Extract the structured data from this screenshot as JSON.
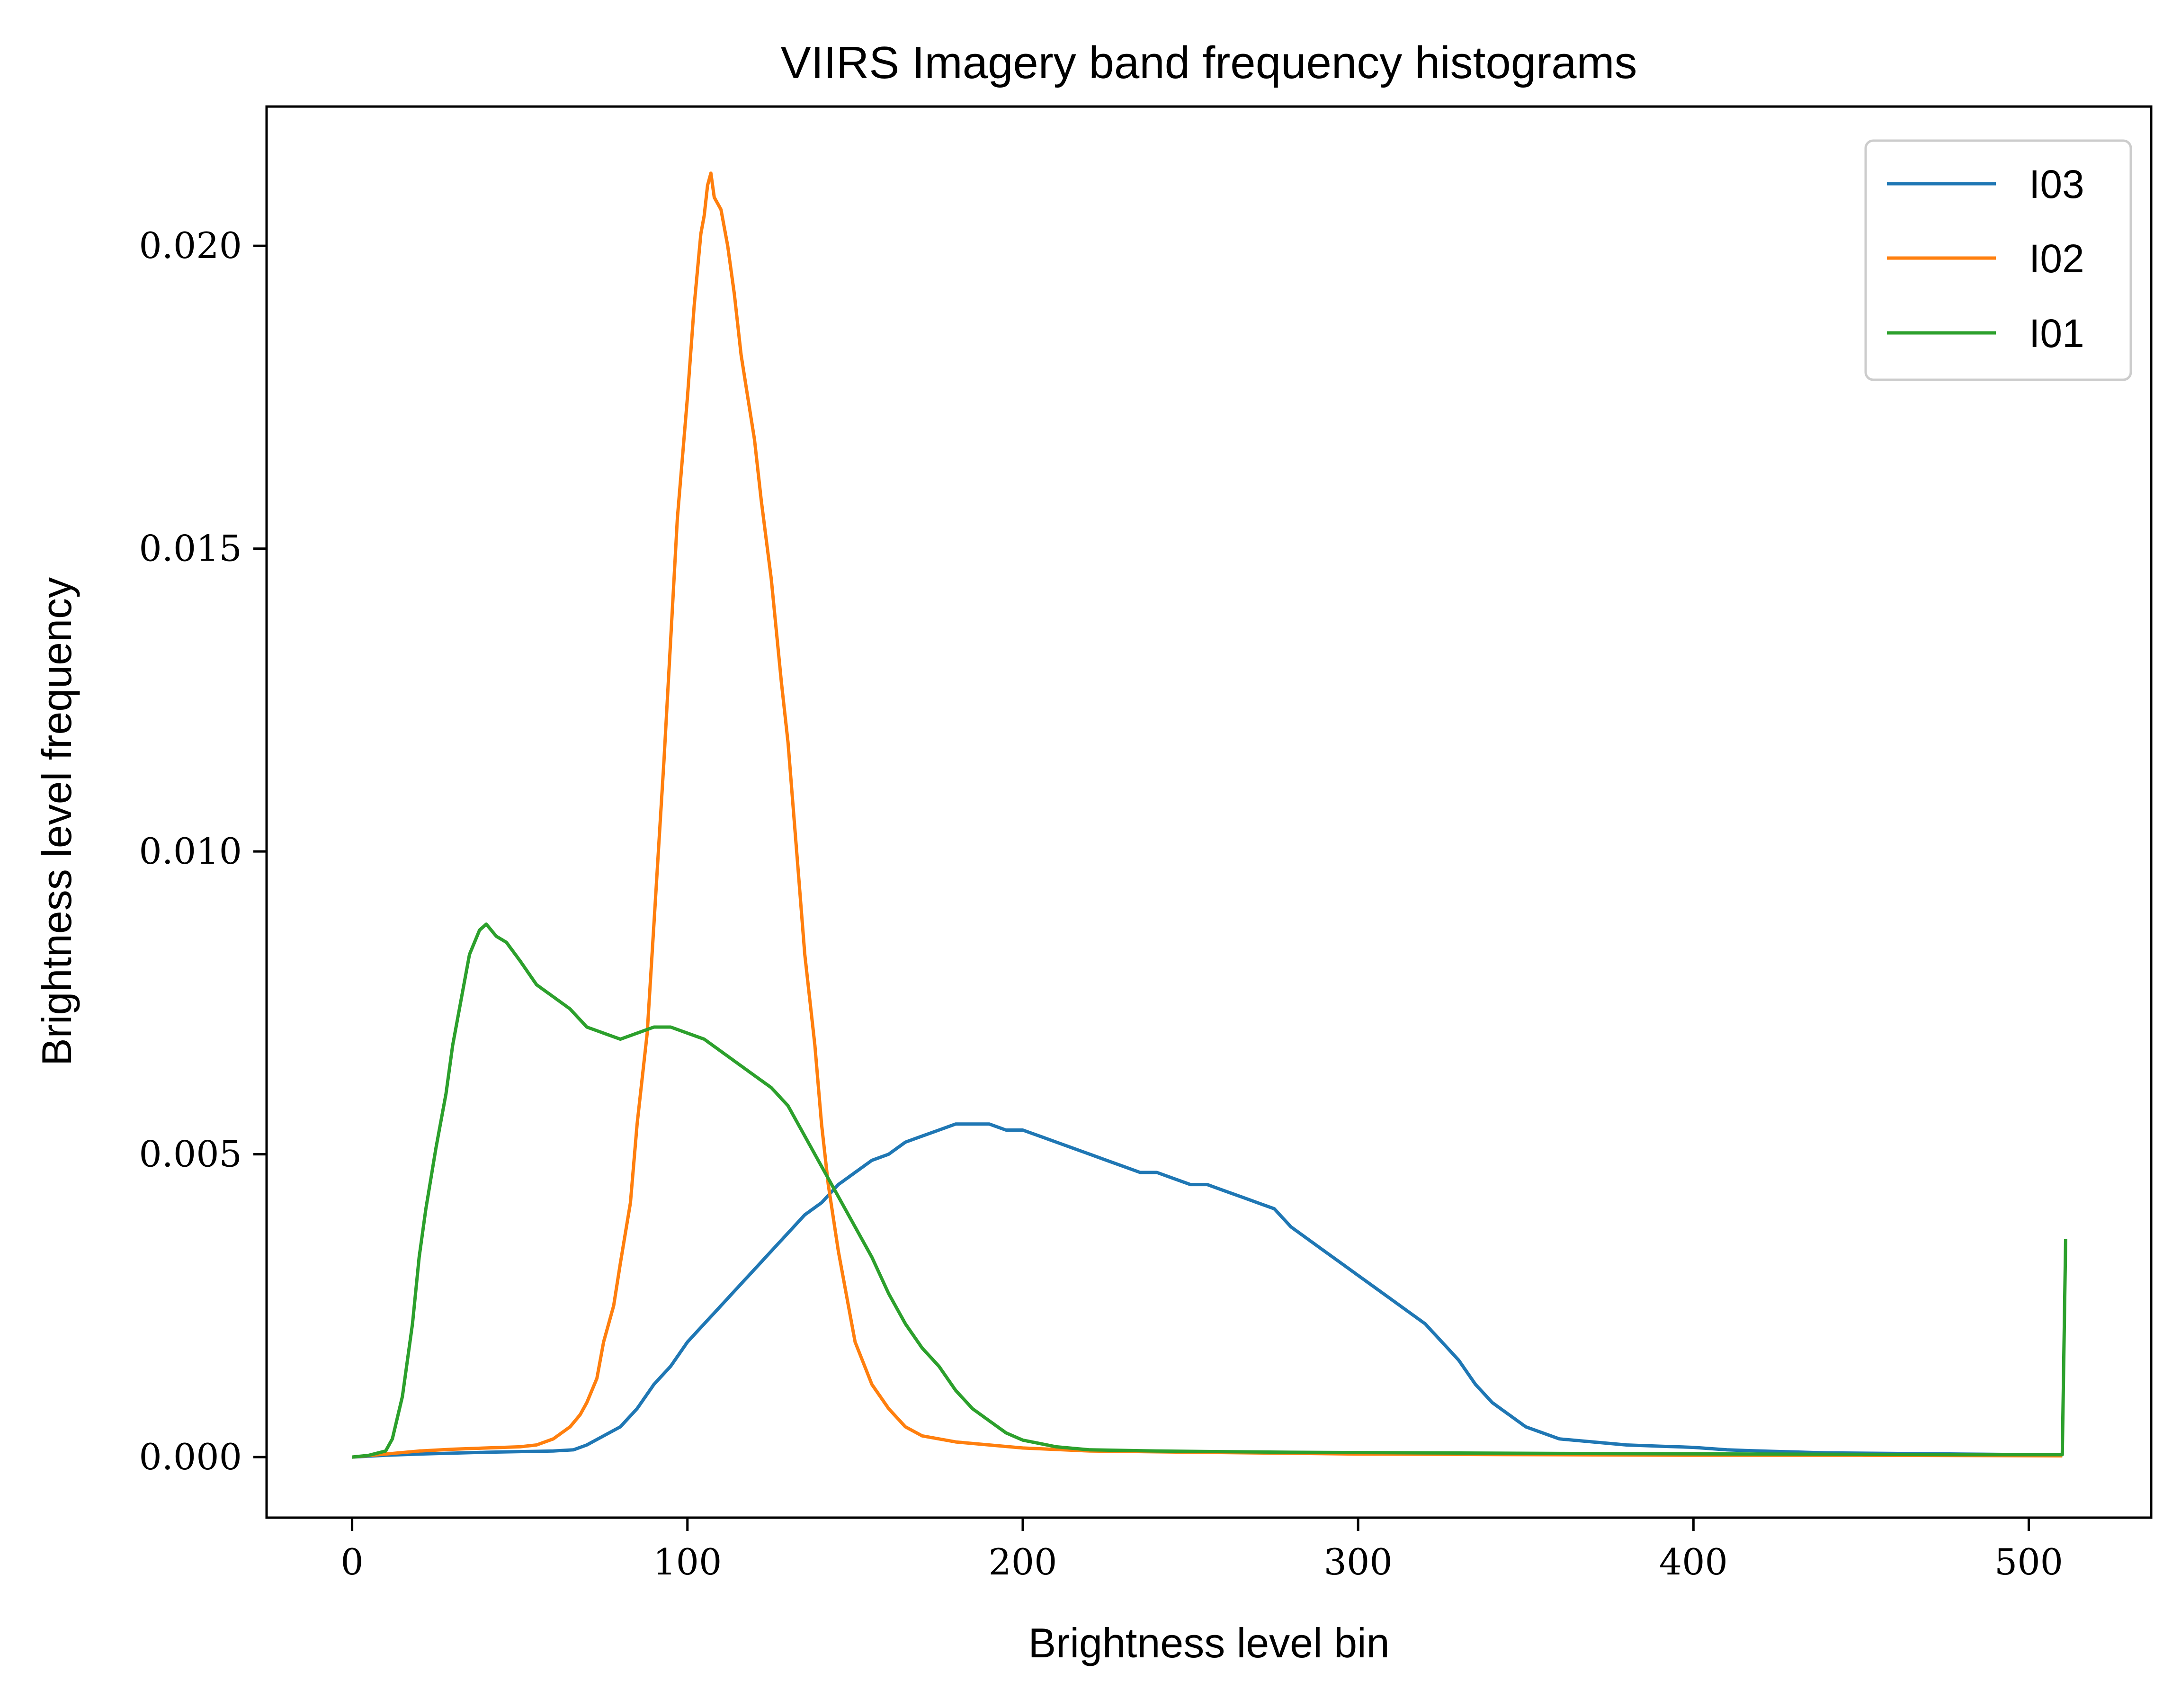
{
  "chart_data": {
    "type": "line",
    "title": "VIIRS Imagery band frequency histograms",
    "xlabel": "Brightness level bin",
    "ylabel": "Brightness level frequency",
    "xlim": [
      -25.5,
      536.5
    ],
    "ylim": [
      -0.001,
      0.0223
    ],
    "xticks": [
      0,
      100,
      200,
      300,
      400,
      500
    ],
    "xtick_labels": [
      "0",
      "100",
      "200",
      "300",
      "400",
      "500"
    ],
    "yticks": [
      0.0,
      0.005,
      0.01,
      0.015,
      0.02
    ],
    "ytick_labels": [
      "0.000",
      "0.005",
      "0.010",
      "0.015",
      "0.020"
    ],
    "legend_position": "top-right",
    "grid": false,
    "series": [
      {
        "name": "I03",
        "color": "#1f77b4",
        "points": [
          [
            0,
            0.0
          ],
          [
            10,
            3e-05
          ],
          [
            20,
            5e-05
          ],
          [
            40,
            8e-05
          ],
          [
            60,
            0.0001
          ],
          [
            66,
            0.00012
          ],
          [
            70,
            0.0002
          ],
          [
            75,
            0.00035
          ],
          [
            80,
            0.0005
          ],
          [
            85,
            0.0008
          ],
          [
            90,
            0.0012
          ],
          [
            95,
            0.0015
          ],
          [
            100,
            0.0019
          ],
          [
            105,
            0.0022
          ],
          [
            110,
            0.0025
          ],
          [
            115,
            0.0028
          ],
          [
            120,
            0.0031
          ],
          [
            125,
            0.0034
          ],
          [
            130,
            0.0037
          ],
          [
            135,
            0.004
          ],
          [
            140,
            0.0042
          ],
          [
            145,
            0.0045
          ],
          [
            150,
            0.0047
          ],
          [
            155,
            0.0049
          ],
          [
            160,
            0.005
          ],
          [
            165,
            0.0052
          ],
          [
            170,
            0.0053
          ],
          [
            175,
            0.0054
          ],
          [
            180,
            0.0055
          ],
          [
            185,
            0.0055
          ],
          [
            190,
            0.0055
          ],
          [
            195,
            0.0054
          ],
          [
            200,
            0.0054
          ],
          [
            205,
            0.0053
          ],
          [
            210,
            0.0052
          ],
          [
            215,
            0.0051
          ],
          [
            220,
            0.005
          ],
          [
            225,
            0.0049
          ],
          [
            230,
            0.0048
          ],
          [
            235,
            0.0047
          ],
          [
            240,
            0.0047
          ],
          [
            245,
            0.0046
          ],
          [
            250,
            0.0045
          ],
          [
            255,
            0.0045
          ],
          [
            260,
            0.0044
          ],
          [
            265,
            0.0043
          ],
          [
            270,
            0.0042
          ],
          [
            275,
            0.0041
          ],
          [
            280,
            0.0038
          ],
          [
            285,
            0.0036
          ],
          [
            290,
            0.0034
          ],
          [
            295,
            0.0032
          ],
          [
            300,
            0.003
          ],
          [
            305,
            0.0028
          ],
          [
            310,
            0.0026
          ],
          [
            315,
            0.0024
          ],
          [
            320,
            0.0022
          ],
          [
            325,
            0.0019
          ],
          [
            330,
            0.0016
          ],
          [
            335,
            0.0012
          ],
          [
            340,
            0.0009
          ],
          [
            345,
            0.0007
          ],
          [
            350,
            0.0005
          ],
          [
            355,
            0.0004
          ],
          [
            360,
            0.0003
          ],
          [
            370,
            0.00025
          ],
          [
            380,
            0.0002
          ],
          [
            390,
            0.00018
          ],
          [
            400,
            0.00016
          ],
          [
            410,
            0.00012
          ],
          [
            420,
            0.0001
          ],
          [
            440,
            7e-05
          ],
          [
            460,
            6e-05
          ],
          [
            480,
            5e-05
          ],
          [
            500,
            4e-05
          ],
          [
            510,
            4e-05
          ]
        ]
      },
      {
        "name": "I02",
        "color": "#ff7f0e",
        "points": [
          [
            0,
            0.0
          ],
          [
            10,
            5e-05
          ],
          [
            20,
            0.0001
          ],
          [
            30,
            0.00013
          ],
          [
            40,
            0.00015
          ],
          [
            50,
            0.00017
          ],
          [
            55,
            0.0002
          ],
          [
            60,
            0.0003
          ],
          [
            65,
            0.0005
          ],
          [
            68,
            0.0007
          ],
          [
            70,
            0.0009
          ],
          [
            73,
            0.0013
          ],
          [
            75,
            0.0019
          ],
          [
            78,
            0.0025
          ],
          [
            80,
            0.0032
          ],
          [
            83,
            0.0042
          ],
          [
            85,
            0.0055
          ],
          [
            88,
            0.007
          ],
          [
            90,
            0.0088
          ],
          [
            93,
            0.0115
          ],
          [
            95,
            0.0135
          ],
          [
            97,
            0.0155
          ],
          [
            100,
            0.0175
          ],
          [
            102,
            0.019
          ],
          [
            104,
            0.0202
          ],
          [
            105,
            0.0205
          ],
          [
            106,
            0.021
          ],
          [
            107,
            0.0212
          ],
          [
            108,
            0.0208
          ],
          [
            110,
            0.0206
          ],
          [
            112,
            0.02
          ],
          [
            114,
            0.0192
          ],
          [
            116,
            0.0182
          ],
          [
            118,
            0.0175
          ],
          [
            120,
            0.0168
          ],
          [
            122,
            0.0158
          ],
          [
            125,
            0.0145
          ],
          [
            128,
            0.0128
          ],
          [
            130,
            0.0118
          ],
          [
            133,
            0.0097
          ],
          [
            135,
            0.0083
          ],
          [
            138,
            0.0068
          ],
          [
            140,
            0.0055
          ],
          [
            142,
            0.0045
          ],
          [
            145,
            0.0034
          ],
          [
            148,
            0.0025
          ],
          [
            150,
            0.0019
          ],
          [
            155,
            0.0012
          ],
          [
            160,
            0.0008
          ],
          [
            165,
            0.0005
          ],
          [
            170,
            0.00035
          ],
          [
            180,
            0.00025
          ],
          [
            190,
            0.0002
          ],
          [
            200,
            0.00015
          ],
          [
            220,
            0.0001
          ],
          [
            250,
            8e-05
          ],
          [
            300,
            5e-05
          ],
          [
            350,
            4e-05
          ],
          [
            400,
            3e-05
          ],
          [
            450,
            3e-05
          ],
          [
            510,
            2e-05
          ]
        ]
      },
      {
        "name": "I01",
        "color": "#2ca02c",
        "points": [
          [
            0,
            0.0
          ],
          [
            5,
            3e-05
          ],
          [
            10,
            0.0001
          ],
          [
            12,
            0.0003
          ],
          [
            15,
            0.001
          ],
          [
            18,
            0.0022
          ],
          [
            20,
            0.0033
          ],
          [
            22,
            0.0041
          ],
          [
            25,
            0.0051
          ],
          [
            28,
            0.006
          ],
          [
            30,
            0.0068
          ],
          [
            33,
            0.0077
          ],
          [
            35,
            0.0083
          ],
          [
            38,
            0.0087
          ],
          [
            40,
            0.0088
          ],
          [
            43,
            0.0086
          ],
          [
            46,
            0.0085
          ],
          [
            50,
            0.0082
          ],
          [
            55,
            0.0078
          ],
          [
            60,
            0.0076
          ],
          [
            65,
            0.0074
          ],
          [
            70,
            0.0071
          ],
          [
            75,
            0.007
          ],
          [
            80,
            0.0069
          ],
          [
            85,
            0.007
          ],
          [
            90,
            0.0071
          ],
          [
            95,
            0.0071
          ],
          [
            100,
            0.007
          ],
          [
            105,
            0.0069
          ],
          [
            110,
            0.0067
          ],
          [
            115,
            0.0065
          ],
          [
            120,
            0.0063
          ],
          [
            125,
            0.0061
          ],
          [
            130,
            0.0058
          ],
          [
            135,
            0.0053
          ],
          [
            140,
            0.0048
          ],
          [
            145,
            0.0043
          ],
          [
            150,
            0.0038
          ],
          [
            155,
            0.0033
          ],
          [
            160,
            0.0027
          ],
          [
            165,
            0.0022
          ],
          [
            170,
            0.0018
          ],
          [
            175,
            0.0015
          ],
          [
            180,
            0.0011
          ],
          [
            185,
            0.0008
          ],
          [
            190,
            0.0006
          ],
          [
            195,
            0.0004
          ],
          [
            200,
            0.00028
          ],
          [
            210,
            0.00017
          ],
          [
            220,
            0.00012
          ],
          [
            240,
            0.0001
          ],
          [
            280,
            8e-05
          ],
          [
            320,
            7e-05
          ],
          [
            360,
            6e-05
          ],
          [
            420,
            5e-05
          ],
          [
            480,
            4e-05
          ],
          [
            510,
            4e-05
          ],
          [
            511,
            0.0036
          ]
        ]
      }
    ]
  }
}
